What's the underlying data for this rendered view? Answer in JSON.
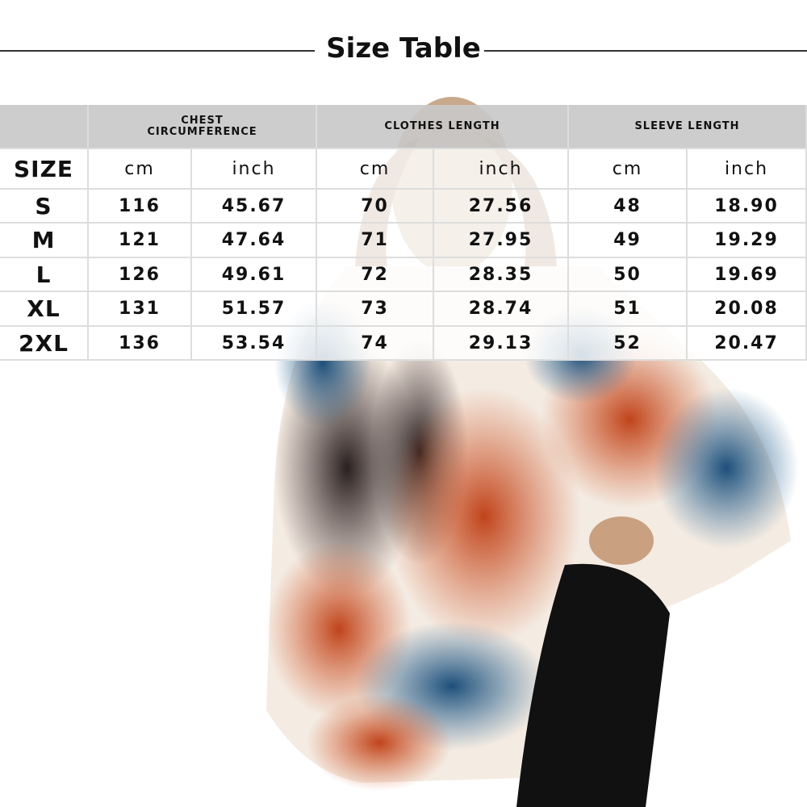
{
  "header": {
    "title": "Size Table"
  },
  "table": {
    "size_label": "SIZE",
    "groups": [
      "CHEST CIRCUMFERENCE",
      "CLOTHES LENGTH",
      "SLEEVE LENGTH"
    ],
    "units": [
      "cm",
      "inch",
      "cm",
      "inch",
      "cm",
      "inch"
    ],
    "rows": [
      [
        "S",
        "116",
        "45.67",
        "70",
        "27.56",
        "48",
        "18.90"
      ],
      [
        "M",
        "121",
        "47.64",
        "71",
        "27.95",
        "49",
        "19.29"
      ],
      [
        "L",
        "126",
        "49.61",
        "72",
        "28.35",
        "50",
        "19.69"
      ],
      [
        "XL",
        "131",
        "51.57",
        "73",
        "28.74",
        "51",
        "20.08"
      ],
      [
        "2XL",
        "136",
        "53.54",
        "74",
        "29.13",
        "52",
        "20.47"
      ]
    ]
  }
}
